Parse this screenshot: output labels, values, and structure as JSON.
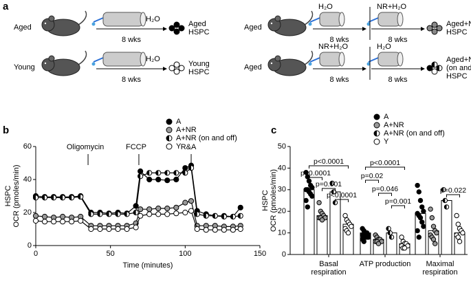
{
  "panel_a": {
    "label": "a",
    "rows": [
      {
        "mouse": "Aged",
        "steps": [
          {
            "treatment": "H₂O",
            "duration": "8 wks"
          }
        ],
        "result": [
          "Aged",
          "HSPC"
        ]
      },
      {
        "mouse": "Young",
        "steps": [
          {
            "treatment": "H₂O",
            "duration": "8 wks"
          }
        ],
        "result": [
          "Young",
          "HSPC"
        ]
      },
      {
        "mouse": "Aged",
        "steps": [
          {
            "treatment": "H₂O",
            "duration": "8 wks"
          },
          {
            "treatment": "NR+H₂O",
            "duration": "8 wks"
          }
        ],
        "result": [
          "Aged+NR",
          "HSPC"
        ]
      },
      {
        "mouse": "Aged",
        "steps": [
          {
            "treatment": "NR+H₂O",
            "duration": "8 wks"
          },
          {
            "treatment": "H₂O",
            "duration": "8 wks"
          }
        ],
        "result": [
          "Aged+NR",
          "(on and off)",
          "HSPC"
        ]
      }
    ]
  },
  "chart_data": [
    {
      "type": "line",
      "panel": "b",
      "xlabel": "Time (minutes)",
      "ylabel": [
        "HSPC",
        "OCR (pmoles/min)"
      ],
      "x": [
        0,
        6,
        12,
        18,
        24,
        30,
        37,
        43,
        49,
        55,
        61,
        67,
        70,
        76,
        82,
        88,
        94,
        100,
        104,
        108,
        114,
        120,
        126,
        132,
        137
      ],
      "xlim": [
        0,
        150
      ],
      "xticks": [
        0,
        50,
        100,
        150
      ],
      "ylim": [
        0,
        60
      ],
      "yticks": [
        0,
        20,
        40,
        60
      ],
      "annotations": [
        {
          "x": 35,
          "label": "Oligomycin"
        },
        {
          "x": 69,
          "label": "FCCP"
        },
        {
          "x": 104,
          "label": "R&A"
        }
      ],
      "series": [
        {
          "name": "A",
          "color": "#000000",
          "marker": "filled",
          "values": [
            30,
            29.5,
            29.5,
            29.5,
            29.5,
            30,
            20,
            20,
            19.5,
            20,
            19.5,
            24,
            45,
            40,
            40,
            39.5,
            40,
            47,
            48.5,
            21,
            19,
            18,
            18,
            17.5,
            23
          ]
        },
        {
          "name": "A+NR",
          "color": "#999999",
          "marker": "filled",
          "values": [
            18,
            17.5,
            17,
            17.5,
            17,
            17.5,
            12,
            12,
            12,
            12,
            12,
            13.5,
            22,
            22,
            22.5,
            22.5,
            23,
            26,
            27,
            12,
            12,
            12,
            11.5,
            11.5,
            12
          ]
        },
        {
          "name": "A+NR (on and off)",
          "color": "#000000",
          "marker": "half",
          "values": [
            29,
            29,
            29,
            29,
            29,
            29.5,
            19,
            19,
            19,
            19,
            19,
            20,
            42,
            44,
            44,
            44,
            44,
            44,
            47,
            19,
            18,
            18,
            17.5,
            17.5,
            18
          ]
        },
        {
          "name": "Y",
          "color": "#000000",
          "marker": "open",
          "values": [
            15,
            14.5,
            14.5,
            14.5,
            14.5,
            15,
            10,
            10,
            10,
            10,
            10,
            11,
            18,
            19,
            19,
            19,
            19.5,
            20,
            21,
            10,
            9.5,
            9.5,
            9.5,
            9.5,
            10
          ]
        }
      ]
    },
    {
      "type": "bar",
      "panel": "c",
      "ylabel": [
        "HSPC",
        "OCR (pmoles/min)"
      ],
      "categories": [
        "Basal respiration",
        "ATP production",
        "Maximal respiration"
      ],
      "ylim": [
        0,
        50
      ],
      "yticks": [
        0,
        10,
        20,
        30,
        40,
        50
      ],
      "series": [
        {
          "name": "A",
          "color": "#000000",
          "marker": "filled",
          "values": [
            30,
            10,
            19
          ],
          "points": [
            [
              38,
              36,
              34,
              32,
              31,
              30,
              30,
              29,
              28,
              27,
              25,
              22
            ],
            [
              12,
              11,
              10,
              10,
              9,
              9,
              9,
              8,
              8,
              8,
              7,
              6
            ],
            [
              32,
              29,
              25,
              22,
              20,
              19,
              18,
              17,
              15,
              13,
              11,
              8
            ]
          ]
        },
        {
          "name": "A+NR",
          "color": "#999999",
          "marker": "filled",
          "values": [
            18,
            7,
            11
          ],
          "points": [
            [
              24,
              20,
              19,
              18,
              17,
              17,
              17,
              16
            ],
            [
              9,
              8,
              7,
              7,
              6,
              6,
              6,
              5
            ],
            [
              21,
              17,
              13,
              11,
              10,
              9,
              8,
              7,
              5
            ]
          ]
        },
        {
          "name": "A+NR (on and off)",
          "color": "#000000",
          "marker": "half",
          "values": [
            29,
            10,
            25
          ],
          "points": [
            [
              33,
              29,
              24
            ],
            [
              12,
              10,
              8
            ],
            [
              30,
              25,
              22
            ]
          ]
        },
        {
          "name": "Y",
          "color": "#000000",
          "marker": "open",
          "values": [
            14,
            5,
            10
          ],
          "points": [
            [
              18,
              16,
              15,
              14,
              13,
              12,
              11,
              10
            ],
            [
              8,
              6,
              5,
              5,
              4,
              4,
              3,
              3
            ],
            [
              18,
              14,
              12,
              11,
              10,
              9,
              8,
              6
            ]
          ]
        }
      ],
      "comparisons": [
        {
          "category": 0,
          "pair": [
            0,
            3
          ],
          "label": "p<0.0001"
        },
        {
          "category": 0,
          "pair": [
            0,
            1
          ],
          "label": "p<0.0001"
        },
        {
          "category": 0,
          "pair": [
            1,
            2
          ],
          "label": "p=0.001"
        },
        {
          "category": 0,
          "pair": [
            2,
            3
          ],
          "label": "p<0.0001"
        },
        {
          "category": 1,
          "pair": [
            0,
            3
          ],
          "label": "p<0.0001"
        },
        {
          "category": 1,
          "pair": [
            0,
            1
          ],
          "label": "p=0.02"
        },
        {
          "category": 1,
          "pair": [
            1,
            2
          ],
          "label": "p=0.046"
        },
        {
          "category": 1,
          "pair": [
            2,
            3
          ],
          "label": "p=0.001"
        },
        {
          "category": 2,
          "pair": [
            2,
            3
          ],
          "label": "p=0.022"
        }
      ]
    }
  ]
}
